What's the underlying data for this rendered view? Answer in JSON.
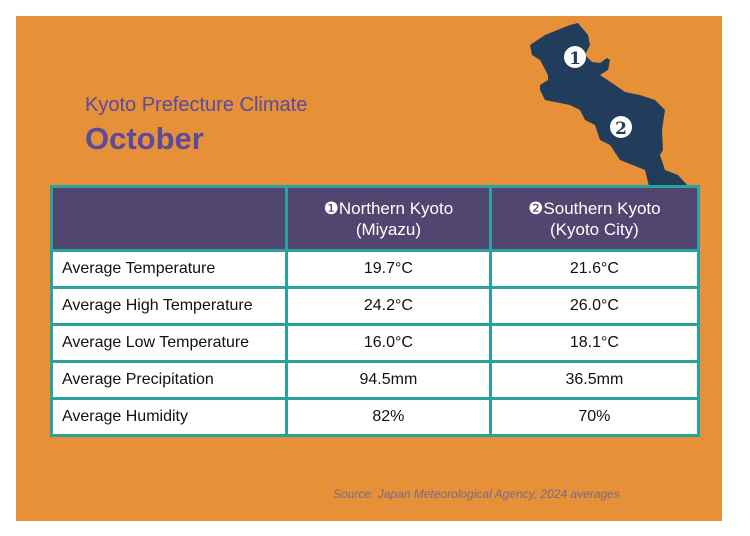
{
  "title": "Kyoto Prefecture Climate",
  "subtitle": "October",
  "map": {
    "markers": [
      "❶",
      "❷"
    ],
    "fill": "#223d5c"
  },
  "table": {
    "headers": [
      "",
      "❶Northern Kyoto\n(Miyazu)",
      "❷Southern Kyoto\n(Kyoto City)"
    ],
    "header_lines": [
      [
        "❶Northern Kyoto",
        "(Miyazu)"
      ],
      [
        "❷Southern Kyoto",
        "(Kyoto City)"
      ]
    ],
    "rows": [
      [
        "Average Temperature",
        "19.7°C",
        "21.6°C"
      ],
      [
        "Average High Temperature",
        "24.2°C",
        "26.0°C"
      ],
      [
        "Average Low Temperature",
        "16.0°C",
        "18.1°C"
      ],
      [
        "Average Precipitation",
        "94.5mm",
        "36.5mm"
      ],
      [
        "Average Humidity",
        "82%",
        "70%"
      ]
    ]
  },
  "source": "Source: Japan Meteorological Agency, 2024 averages",
  "colors": {
    "background": "#e69038",
    "header": "#51466f",
    "border": "#2aa3a0",
    "title": "#5b4a9e"
  }
}
